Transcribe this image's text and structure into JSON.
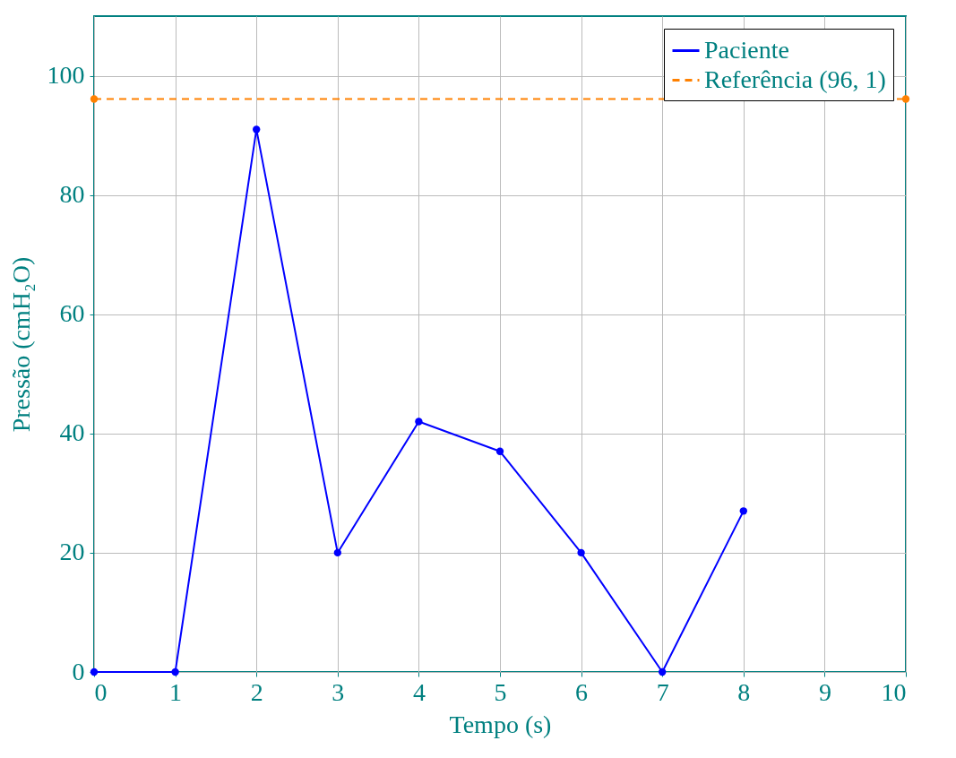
{
  "chart_data": {
    "type": "line",
    "xlabel": "Tempo (s)",
    "ylabel": "Pressão (cmH₂O)",
    "x": [
      0,
      1,
      2,
      3,
      4,
      5,
      6,
      7,
      8
    ],
    "series": [
      {
        "name": "Paciente",
        "color": "#0000ff",
        "values": [
          0,
          0,
          91,
          20,
          42,
          37,
          20,
          0,
          27
        ],
        "line_style": "solid"
      },
      {
        "name": "Referência (96, 1)",
        "color": "#ff8000",
        "x": [
          0,
          10
        ],
        "values": [
          96.1,
          96.1
        ],
        "line_style": "dashed"
      }
    ],
    "xlim": [
      0,
      10
    ],
    "xticks": [
      0,
      1,
      2,
      3,
      4,
      5,
      6,
      7,
      8,
      9,
      10
    ],
    "ylim": [
      0,
      110
    ],
    "yticks": [
      0,
      20,
      40,
      60,
      80,
      100
    ],
    "grid": true,
    "legend": "top right",
    "marker": "circle"
  }
}
